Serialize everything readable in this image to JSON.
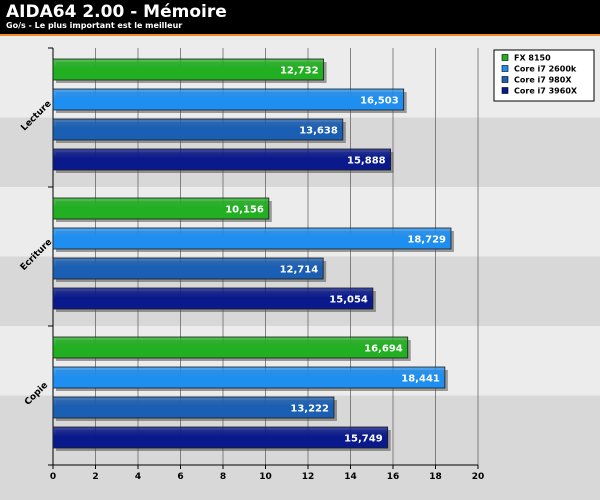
{
  "chart_data": {
    "type": "bar",
    "orientation": "horizontal",
    "title": "AIDA64 2.00 - Mémoire",
    "subtitle": "Go/s - Le plus important est le meilleur",
    "categories": [
      "Lecture",
      "Ecriture",
      "Copie"
    ],
    "series": [
      {
        "name": "FX 8150",
        "color": "#22b022",
        "values": [
          12.732,
          10.156,
          16.694
        ],
        "labels": [
          "12,732",
          "10,156",
          "16,694"
        ]
      },
      {
        "name": "Core i7 2600k",
        "color": "#1e8ff0",
        "values": [
          16.503,
          18.729,
          18.441
        ],
        "labels": [
          "16,503",
          "18,729",
          "18,441"
        ]
      },
      {
        "name": "Core i7 980X",
        "color": "#1a5fb4",
        "values": [
          13.638,
          12.714,
          13.222
        ],
        "labels": [
          "13,638",
          "12,714",
          "13,222"
        ]
      },
      {
        "name": "Core i7 3960X",
        "color": "#0a1a8c",
        "values": [
          15.888,
          15.054,
          15.749
        ],
        "labels": [
          "15,888",
          "15,054",
          "15,749"
        ]
      }
    ],
    "xlim": [
      0,
      20
    ],
    "xticks": [
      0,
      2,
      4,
      6,
      8,
      10,
      12,
      14,
      16,
      18,
      20
    ],
    "xtick_labels": [
      "0",
      "2",
      "4",
      "6",
      "8",
      "10",
      "12",
      "14",
      "16",
      "18",
      "20"
    ],
    "grid": true,
    "legend_position": "top-right"
  },
  "colors": {
    "header_background": "#000000",
    "header_accent": "#f28c1c",
    "band_light": "#ececec",
    "band_dark": "#d8d8d8"
  }
}
